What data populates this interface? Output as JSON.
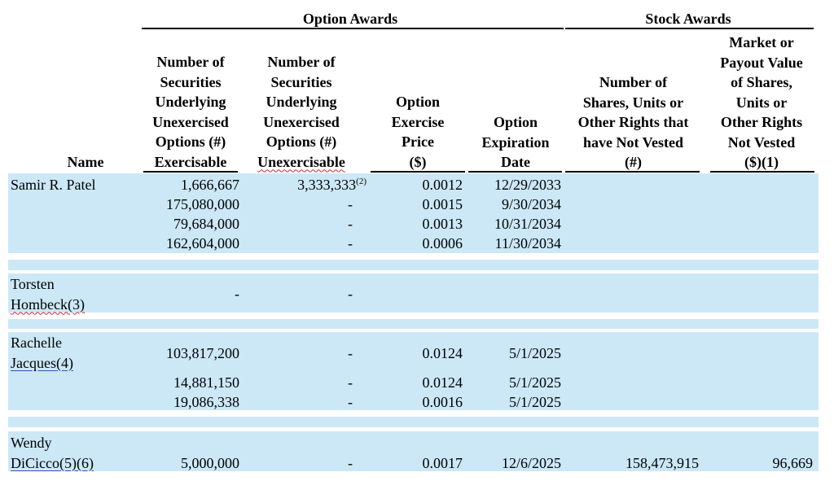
{
  "groups": {
    "option_awards": "Option Awards",
    "stock_awards": "Stock Awards"
  },
  "columns": {
    "name": "Name",
    "exercisable": [
      "Number of",
      "Securities",
      "Underlying",
      "Unexercised",
      "Options (#)",
      "Exercisable"
    ],
    "unexercisable": [
      "Number of",
      "Securities",
      "Underlying",
      "Unexercised",
      "Options (#)",
      "Unexercisable"
    ],
    "exercise_price": [
      "Option",
      "Exercise",
      "Price",
      "($)"
    ],
    "expiration_date": [
      "Option",
      "Expiration",
      "Date"
    ],
    "shares_not_vested": [
      "Number of",
      "Shares, Units or",
      "Other Rights that",
      "have Not Vested",
      "(#)"
    ],
    "market_value": [
      "Market or",
      "Payout Value",
      "of Shares,",
      "Units or",
      "Other Rights",
      "Not Vested",
      "($)(1)"
    ]
  },
  "rows": [
    {
      "name": "Samir R. Patel",
      "exercisable": "1,666,667",
      "unexercisable": "3,333,333",
      "unexercisable_note": "(2)",
      "price": "0.0012",
      "date": "12/29/2033"
    },
    {
      "exercisable": "175,080,000",
      "unexercisable": "-",
      "price": "0.0015",
      "date": "9/30/2034"
    },
    {
      "exercisable": "79,684,000",
      "unexercisable": "-",
      "price": "0.0013",
      "date": "10/31/2034"
    },
    {
      "exercisable": "162,604,000",
      "unexercisable": "-",
      "price": "0.0006",
      "date": "11/30/2034"
    },
    {
      "name_line1": "Torsten",
      "name_line2": "Hombeck(3)",
      "exercisable": "-",
      "unexercisable": "-"
    },
    {
      "name_line1": "Rachelle",
      "name_line2": "Jacques(4)",
      "exercisable": "103,817,200",
      "unexercisable": "-",
      "price": "0.0124",
      "date": "5/1/2025"
    },
    {
      "exercisable": "14,881,150",
      "unexercisable": "-",
      "price": "0.0124",
      "date": "5/1/2025"
    },
    {
      "exercisable": "19,086,338",
      "unexercisable": "-",
      "price": "0.0016",
      "date": "5/1/2025"
    },
    {
      "name_line1": "Wendy",
      "name_line2": "DiCicco(5)(6)",
      "exercisable": "5,000,000",
      "unexercisable": "-",
      "price": "0.0017",
      "date": "12/6/2025",
      "shares_not_vested": "158,473,915",
      "market_value": "96,669"
    }
  ]
}
